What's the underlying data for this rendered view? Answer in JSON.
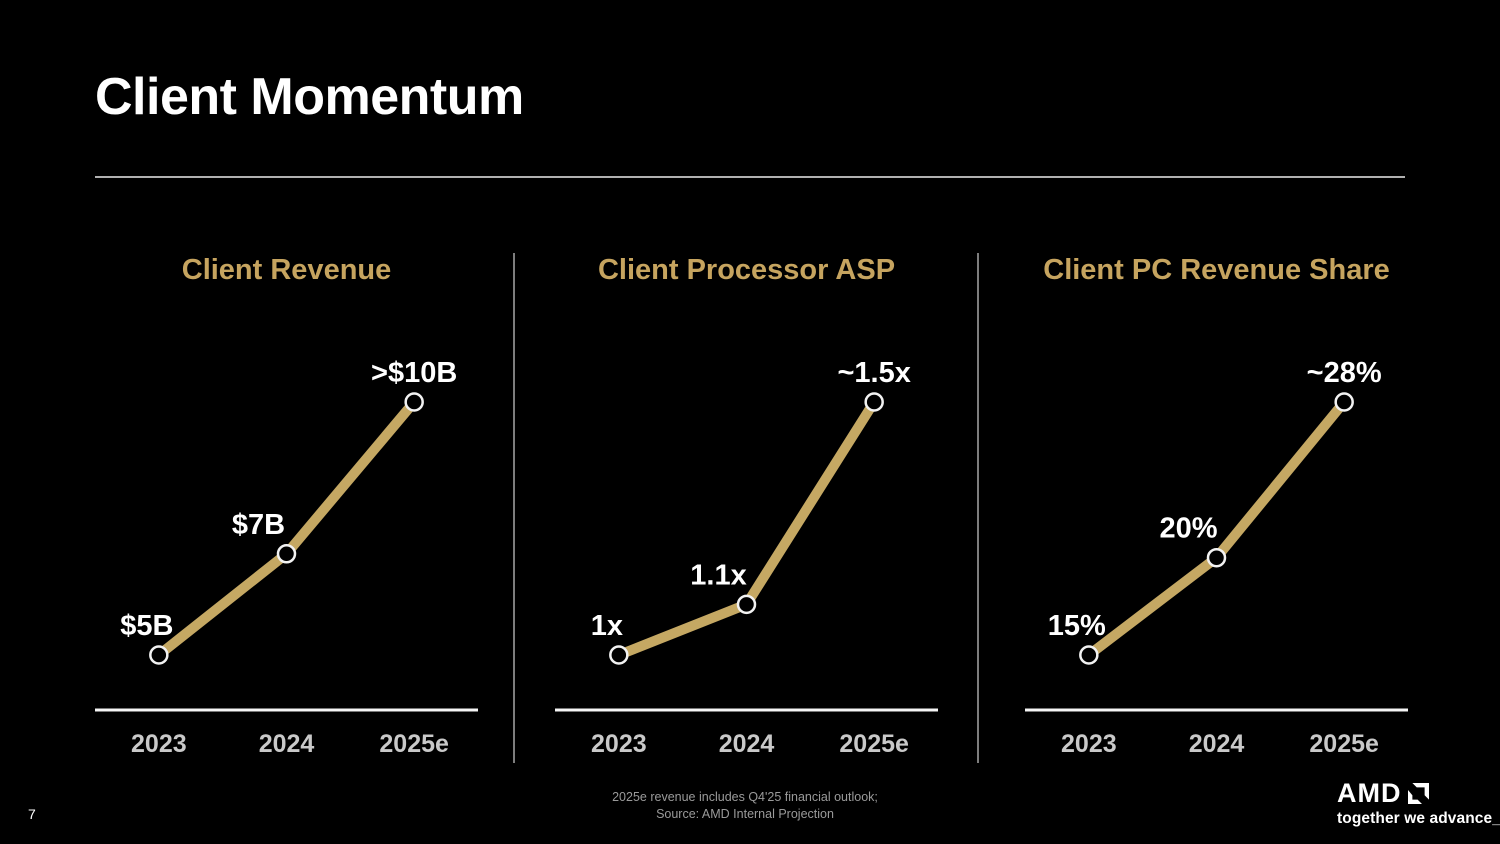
{
  "slide": {
    "title": "Client Momentum",
    "page_number": "7",
    "footnote_line1": "2025e revenue includes Q4'25 financial outlook;",
    "footnote_line2": "Source: AMD Internal Projection",
    "logo": {
      "brand": "AMD",
      "tagline": "together we advance_"
    },
    "colors": {
      "background": "#000000",
      "accent_gold": "#c6a45f",
      "line_gold": "#c5a863",
      "axis_line": "#f5f5f5",
      "axis_label": "#c9c9c9",
      "data_label": "#ffffff",
      "marker_fill": "#000000",
      "marker_stroke": "#f2f2f2",
      "footnote": "#9a9a9a"
    }
  },
  "chart_data": [
    {
      "type": "line",
      "title": "Client Revenue",
      "categories": [
        "2023",
        "2024",
        "2025e"
      ],
      "values": [
        5,
        7,
        10
      ],
      "value_labels": [
        "$5B",
        "$7B",
        ">$10B"
      ],
      "ylabel": "",
      "xlabel": "",
      "grid": "off",
      "legend": "none"
    },
    {
      "type": "line",
      "title": "Client Processor ASP",
      "categories": [
        "2023",
        "2024",
        "2025e"
      ],
      "values": [
        1,
        1.1,
        1.5
      ],
      "value_labels": [
        "1x",
        "1.1x",
        "~1.5x"
      ],
      "ylabel": "",
      "xlabel": "",
      "grid": "off",
      "legend": "none"
    },
    {
      "type": "line",
      "title": "Client PC Revenue Share",
      "categories": [
        "2023",
        "2024",
        "2025e"
      ],
      "values": [
        15,
        20,
        28
      ],
      "value_labels": [
        "15%",
        "20%",
        "~28%"
      ],
      "ylabel": "",
      "xlabel": "",
      "grid": "off",
      "legend": "none"
    }
  ]
}
